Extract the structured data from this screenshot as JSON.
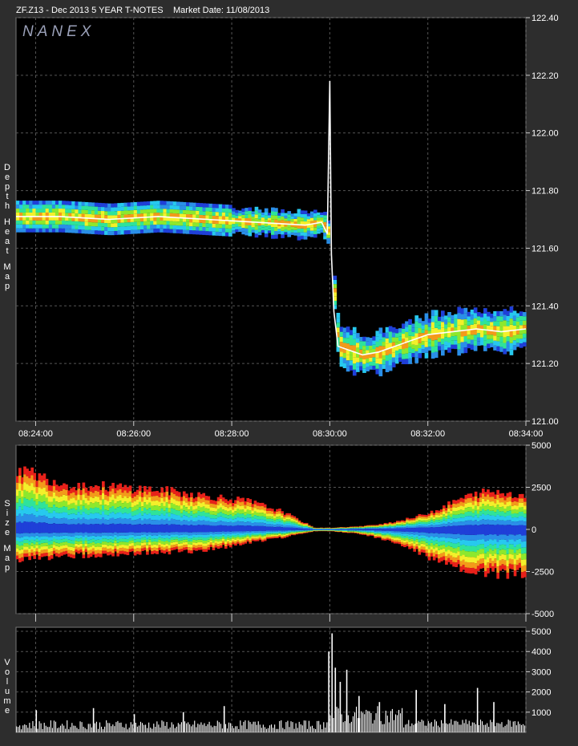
{
  "header": {
    "symbol_title": "ZF.Z13 - Dec 2013 5 YEAR T-NOTES",
    "market_date": "Market Date: 11/08/2013",
    "watermark": "NANEX"
  },
  "colors": {
    "background": "#2d2d2d",
    "panel": "#000000",
    "grid": "#5a5a5a",
    "text": "#ffffff",
    "heat_scale": [
      "#1f3fd8",
      "#2a8fe8",
      "#27c9ee",
      "#2fe39a",
      "#8de82d",
      "#f3f02a",
      "#f39a1a",
      "#e8211a"
    ],
    "price_line": "#ffffff"
  },
  "chart_data": [
    {
      "type": "heatmap",
      "name": "depth",
      "ylabel": "Depth Heat Map",
      "ylim": [
        121.0,
        122.4
      ],
      "yticks": [
        "122.40",
        "122.20",
        "122.00",
        "121.80",
        "121.60",
        "121.40",
        "121.20",
        "121.00"
      ],
      "yticks_values": [
        122.4,
        122.2,
        122.0,
        121.8,
        121.6,
        121.4,
        121.2,
        121.0
      ],
      "x_time_range": [
        "08:23:36",
        "08:34:00"
      ],
      "xticks": [
        "08:24:00",
        "08:26:00",
        "08:28:00",
        "08:30:00",
        "08:32:00",
        "08:34:00"
      ],
      "grid": true,
      "price_series": {
        "t": [
          "08:23:36",
          "08:24:30",
          "08:25:30",
          "08:26:30",
          "08:27:30",
          "08:28:30",
          "08:29:30",
          "08:29:50",
          "08:29:57",
          "08:30:00",
          "08:30:02",
          "08:30:05",
          "08:30:10",
          "08:30:20",
          "08:30:40",
          "08:31:00",
          "08:31:20",
          "08:31:40",
          "08:32:00",
          "08:32:30",
          "08:33:00",
          "08:33:30",
          "08:34:00"
        ],
        "price": [
          121.71,
          121.71,
          121.7,
          121.71,
          121.7,
          121.69,
          121.68,
          121.69,
          121.65,
          122.18,
          121.58,
          121.38,
          121.26,
          121.25,
          121.23,
          121.24,
          121.26,
          121.28,
          121.3,
          121.31,
          121.32,
          121.31,
          121.32
        ]
      }
    },
    {
      "type": "area",
      "name": "size",
      "ylabel": "Size Map",
      "ylim": [
        -5000,
        5000
      ],
      "yticks": [
        "5000",
        "2500",
        "0",
        "-2500",
        "-5000"
      ],
      "yticks_values": [
        5000,
        2500,
        0,
        -2500,
        -5000
      ],
      "grid": true,
      "envelope": {
        "t": [
          "08:23:36",
          "08:24:00",
          "08:24:40",
          "08:25:30",
          "08:26:30",
          "08:27:20",
          "08:28:20",
          "08:29:00",
          "08:29:40",
          "08:30:00",
          "08:30:40",
          "08:31:10",
          "08:31:40",
          "08:32:10",
          "08:32:40",
          "08:33:10",
          "08:33:40",
          "08:34:00"
        ],
        "upper": [
          3700,
          3300,
          2700,
          2600,
          2400,
          2100,
          1700,
          1100,
          100,
          100,
          200,
          400,
          700,
          1200,
          1900,
          2300,
          2200,
          2000
        ],
        "lower": [
          -2000,
          -1700,
          -1600,
          -1500,
          -1400,
          -1300,
          -800,
          -500,
          -100,
          -100,
          -300,
          -700,
          -1200,
          -2000,
          -2400,
          -2700,
          -2700,
          -2600
        ]
      }
    },
    {
      "type": "bar",
      "name": "volume",
      "ylabel": "Volume",
      "ylim": [
        0,
        5200
      ],
      "yticks": [
        "5000",
        "4000",
        "3000",
        "2000",
        "1000"
      ],
      "yticks_values": [
        5000,
        4000,
        3000,
        2000,
        1000
      ],
      "grid": true,
      "spikes": {
        "t": [
          "08:24:00",
          "08:25:10",
          "08:26:00",
          "08:27:00",
          "08:27:50",
          "08:29:58",
          "08:30:02",
          "08:30:06",
          "08:30:12",
          "08:30:20",
          "08:30:35",
          "08:31:00",
          "08:31:45",
          "08:32:20",
          "08:33:00",
          "08:33:20"
        ],
        "volume": [
          1100,
          1200,
          900,
          1000,
          1300,
          4000,
          4900,
          3200,
          2500,
          3100,
          1800,
          1500,
          2100,
          1400,
          2200,
          1500
        ]
      }
    }
  ]
}
